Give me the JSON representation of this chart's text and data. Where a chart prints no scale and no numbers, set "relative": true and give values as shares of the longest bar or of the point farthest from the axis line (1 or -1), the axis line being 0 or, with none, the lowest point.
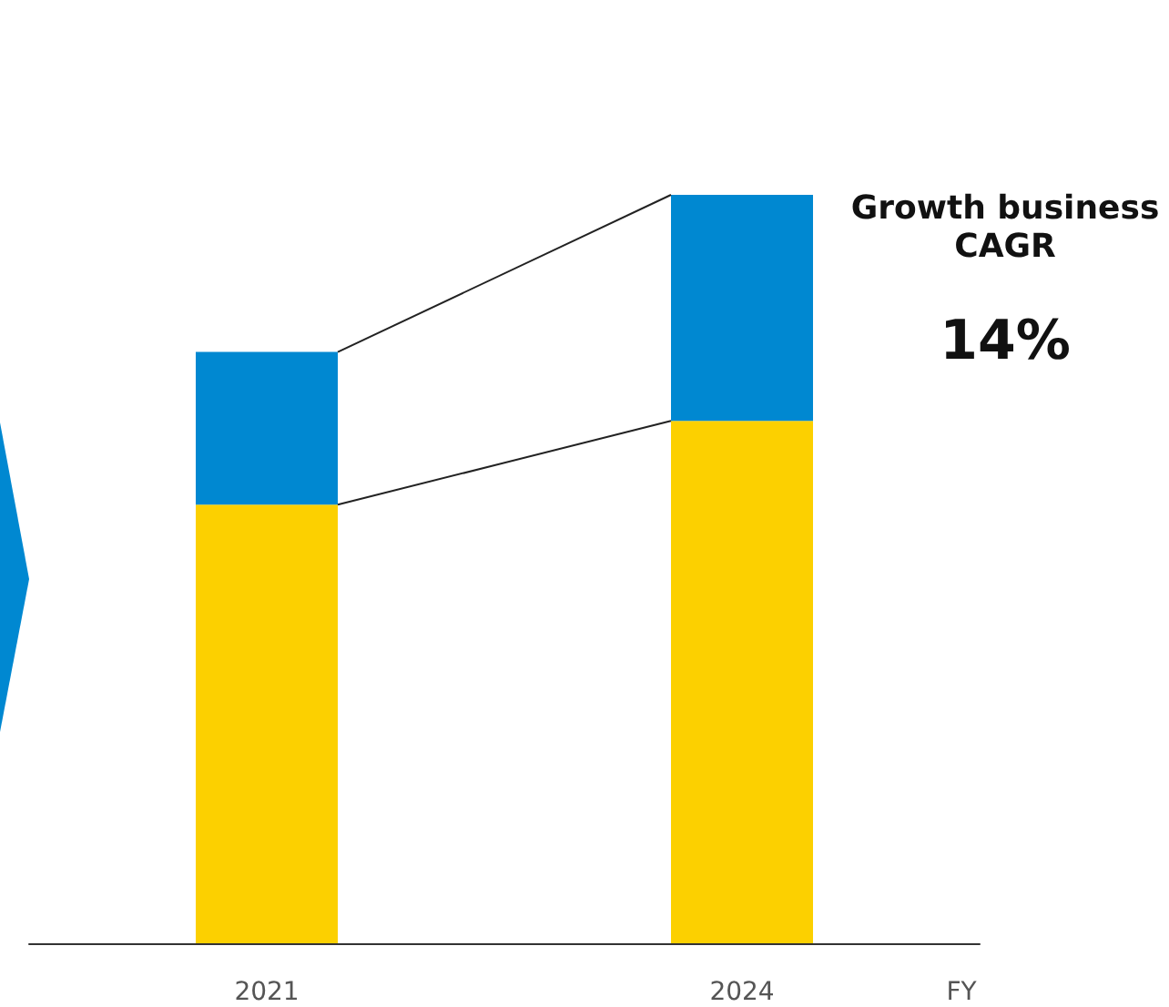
{
  "chart_data": {
    "type": "bar",
    "stacked": true,
    "relative": true,
    "xlabel": "FY",
    "categories": [
      "2021",
      "2024"
    ],
    "series": [
      {
        "color": "#fcd000",
        "values": [
          0.586,
          0.698
        ]
      },
      {
        "color": "#0088d1",
        "values": [
          0.204,
          0.302
        ]
      }
    ],
    "annotations": [
      "Growth business CAGR",
      "14%"
    ]
  }
}
